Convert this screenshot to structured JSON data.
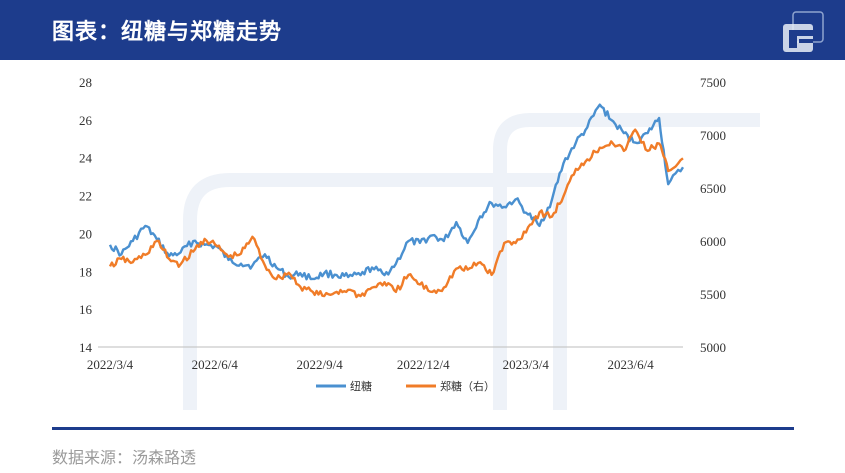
{
  "page": {
    "title": "图表：纽糖与郑糖走势",
    "source": "数据来源：汤森路透",
    "accent_color": "#1d3c8c",
    "logo_icon": "brand-logo-icon"
  },
  "chart_data": {
    "type": "line",
    "title": "图表：纽糖与郑糖走势",
    "x_tick_labels": [
      "2022/3/4",
      "2022/6/4",
      "2022/9/4",
      "2022/12/4",
      "2023/3/4",
      "2023/6/4"
    ],
    "x_range": [
      "2022-03-04",
      "2023-07-20"
    ],
    "y_left": {
      "range": [
        14,
        28
      ],
      "ticks": [
        14,
        16,
        18,
        20,
        22,
        24,
        26,
        28
      ]
    },
    "y_right": {
      "range": [
        5000,
        7500
      ],
      "ticks": [
        5000,
        5500,
        6000,
        6500,
        7000,
        7500
      ]
    },
    "grid": false,
    "legend_position": "bottom",
    "series": [
      {
        "name": "纽糖",
        "axis": "left",
        "color": "#4a90d0",
        "points": [
          [
            "2022-03-04",
            19.4
          ],
          [
            "2022-03-14",
            18.9
          ],
          [
            "2022-03-24",
            19.6
          ],
          [
            "2022-04-04",
            20.4
          ],
          [
            "2022-04-14",
            19.7
          ],
          [
            "2022-04-25",
            18.8
          ],
          [
            "2022-05-05",
            19.0
          ],
          [
            "2022-05-16",
            19.6
          ],
          [
            "2022-05-26",
            19.4
          ],
          [
            "2022-06-06",
            19.3
          ],
          [
            "2022-06-16",
            18.6
          ],
          [
            "2022-06-27",
            18.4
          ],
          [
            "2022-07-07",
            18.3
          ],
          [
            "2022-07-18",
            18.9
          ],
          [
            "2022-07-28",
            18.2
          ],
          [
            "2022-08-08",
            17.7
          ],
          [
            "2022-08-18",
            17.9
          ],
          [
            "2022-08-29",
            17.6
          ],
          [
            "2022-09-08",
            17.9
          ],
          [
            "2022-09-19",
            17.8
          ],
          [
            "2022-09-29",
            17.7
          ],
          [
            "2022-10-10",
            17.8
          ],
          [
            "2022-10-20",
            18.2
          ],
          [
            "2022-10-31",
            17.8
          ],
          [
            "2022-11-10",
            18.4
          ],
          [
            "2022-11-21",
            19.6
          ],
          [
            "2022-12-01",
            19.5
          ],
          [
            "2022-12-12",
            19.9
          ],
          [
            "2022-12-22",
            19.6
          ],
          [
            "2023-01-02",
            20.6
          ],
          [
            "2023-01-12",
            19.5
          ],
          [
            "2023-01-23",
            20.9
          ],
          [
            "2023-02-02",
            21.6
          ],
          [
            "2023-02-13",
            21.4
          ],
          [
            "2023-02-23",
            21.8
          ],
          [
            "2023-03-06",
            21.0
          ],
          [
            "2023-03-16",
            20.4
          ],
          [
            "2023-03-27",
            21.8
          ],
          [
            "2023-04-06",
            23.7
          ],
          [
            "2023-04-17",
            24.8
          ],
          [
            "2023-04-27",
            25.6
          ],
          [
            "2023-05-08",
            26.8
          ],
          [
            "2023-05-18",
            26.0
          ],
          [
            "2023-05-29",
            25.3
          ],
          [
            "2023-06-08",
            24.8
          ],
          [
            "2023-06-19",
            25.3
          ],
          [
            "2023-06-29",
            26.1
          ],
          [
            "2023-07-07",
            22.6
          ],
          [
            "2023-07-20",
            23.5
          ]
        ]
      },
      {
        "name": "郑糖（右）",
        "axis": "right",
        "color": "#f07c28",
        "points": [
          [
            "2022-03-04",
            5760
          ],
          [
            "2022-03-14",
            5830
          ],
          [
            "2022-03-24",
            5800
          ],
          [
            "2022-04-04",
            5870
          ],
          [
            "2022-04-14",
            6000
          ],
          [
            "2022-04-25",
            5830
          ],
          [
            "2022-05-05",
            5780
          ],
          [
            "2022-05-16",
            5900
          ],
          [
            "2022-05-26",
            6020
          ],
          [
            "2022-06-06",
            5950
          ],
          [
            "2022-06-16",
            5850
          ],
          [
            "2022-06-27",
            5880
          ],
          [
            "2022-07-07",
            6040
          ],
          [
            "2022-07-18",
            5770
          ],
          [
            "2022-07-28",
            5640
          ],
          [
            "2022-08-08",
            5700
          ],
          [
            "2022-08-18",
            5570
          ],
          [
            "2022-08-29",
            5520
          ],
          [
            "2022-09-08",
            5480
          ],
          [
            "2022-09-19",
            5520
          ],
          [
            "2022-09-29",
            5540
          ],
          [
            "2022-10-10",
            5480
          ],
          [
            "2022-10-20",
            5560
          ],
          [
            "2022-10-31",
            5610
          ],
          [
            "2022-11-10",
            5520
          ],
          [
            "2022-11-21",
            5680
          ],
          [
            "2022-12-01",
            5590
          ],
          [
            "2022-12-12",
            5520
          ],
          [
            "2022-12-22",
            5560
          ],
          [
            "2023-01-02",
            5740
          ],
          [
            "2023-01-12",
            5730
          ],
          [
            "2023-01-23",
            5800
          ],
          [
            "2023-02-02",
            5680
          ],
          [
            "2023-02-13",
            5980
          ],
          [
            "2023-02-23",
            5980
          ],
          [
            "2023-03-06",
            6130
          ],
          [
            "2023-03-16",
            6270
          ],
          [
            "2023-03-27",
            6230
          ],
          [
            "2023-04-06",
            6420
          ],
          [
            "2023-04-17",
            6680
          ],
          [
            "2023-04-27",
            6770
          ],
          [
            "2023-05-08",
            6880
          ],
          [
            "2023-05-18",
            6940
          ],
          [
            "2023-05-29",
            6850
          ],
          [
            "2023-06-08",
            7050
          ],
          [
            "2023-06-19",
            6850
          ],
          [
            "2023-06-29",
            6920
          ],
          [
            "2023-07-07",
            6660
          ],
          [
            "2023-07-20",
            6780
          ]
        ]
      }
    ]
  }
}
